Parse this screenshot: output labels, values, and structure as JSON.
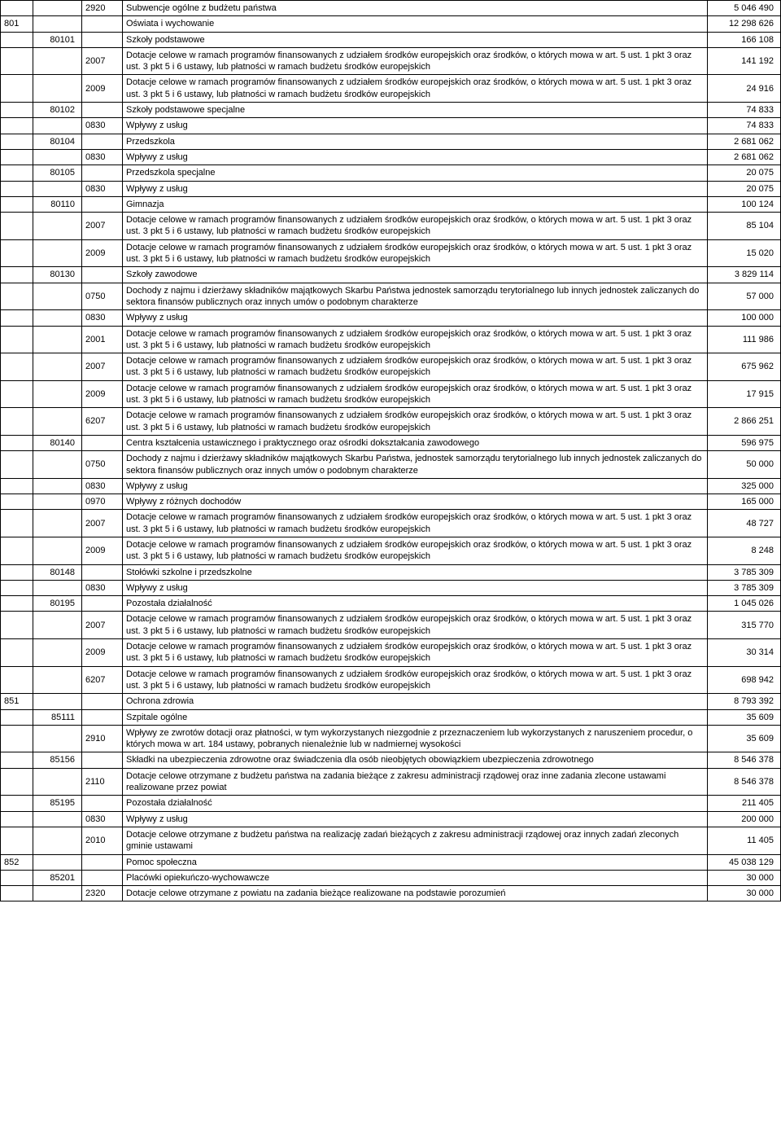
{
  "dotacje_text": "Dotacje celowe w ramach programów finansowanych z udziałem środków europejskich oraz środków, o których mowa w art. 5 ust. 1 pkt 3 oraz ust. 3 pkt 5 i 6 ustawy, lub płatności w ramach budżetu środków europejskich",
  "rows": [
    {
      "c1": "",
      "c2": "",
      "c3": "2920",
      "c4": "Subwencje ogólne z budżetu państwa",
      "c5": "5 046 490"
    },
    {
      "c1": "801",
      "c2": "",
      "c3": "",
      "c4": "Oświata i wychowanie",
      "c5": "12 298 626"
    },
    {
      "c1": "",
      "c2": "80101",
      "c3": "",
      "c4": "Szkoły podstawowe",
      "c5": "166 108"
    },
    {
      "c1": "",
      "c2": "",
      "c3": "2007",
      "c4": "@dotacje",
      "c5": "141 192"
    },
    {
      "c1": "",
      "c2": "",
      "c3": "2009",
      "c4": "@dotacje",
      "c5": "24 916"
    },
    {
      "c1": "",
      "c2": "80102",
      "c3": "",
      "c4": "Szkoły podstawowe specjalne",
      "c5": "74 833"
    },
    {
      "c1": "",
      "c2": "",
      "c3": "0830",
      "c4": "Wpływy z usług",
      "c5": "74 833"
    },
    {
      "c1": "",
      "c2": "80104",
      "c3": "",
      "c4": "Przedszkola",
      "c5": "2 681 062"
    },
    {
      "c1": "",
      "c2": "",
      "c3": "0830",
      "c4": "Wpływy z usług",
      "c5": "2 681 062"
    },
    {
      "c1": "",
      "c2": "80105",
      "c3": "",
      "c4": "Przedszkola specjalne",
      "c5": "20 075"
    },
    {
      "c1": "",
      "c2": "",
      "c3": "0830",
      "c4": "Wpływy z usług",
      "c5": "20 075"
    },
    {
      "c1": "",
      "c2": "80110",
      "c3": "",
      "c4": "Gimnazja",
      "c5": "100 124"
    },
    {
      "c1": "",
      "c2": "",
      "c3": "2007",
      "c4": "@dotacje",
      "c5": "85 104"
    },
    {
      "c1": "",
      "c2": "",
      "c3": "2009",
      "c4": "@dotacje",
      "c5": "15 020"
    },
    {
      "c1": "",
      "c2": "80130",
      "c3": "",
      "c4": "Szkoły zawodowe",
      "c5": "3 829 114"
    },
    {
      "c1": "",
      "c2": "",
      "c3": "0750",
      "c4": "Dochody z najmu i dzierżawy składników majątkowych Skarbu Państwa jednostek samorządu terytorialnego lub innych jednostek zaliczanych do sektora finansów publicznych oraz innych umów o podobnym charakterze",
      "c5": "57 000"
    },
    {
      "c1": "",
      "c2": "",
      "c3": "0830",
      "c4": "Wpływy z usług",
      "c5": "100 000"
    },
    {
      "c1": "",
      "c2": "",
      "c3": "2001",
      "c4": "@dotacje",
      "c5": "111 986"
    },
    {
      "c1": "",
      "c2": "",
      "c3": "2007",
      "c4": "@dotacje",
      "c5": "675 962"
    },
    {
      "c1": "",
      "c2": "",
      "c3": "2009",
      "c4": "@dotacje",
      "c5": "17 915"
    },
    {
      "c1": "",
      "c2": "",
      "c3": "6207",
      "c4": "@dotacje",
      "c5": "2 866 251"
    },
    {
      "c1": "",
      "c2": "80140",
      "c3": "",
      "c4": "Centra kształcenia ustawicznego i praktycznego oraz ośrodki dokształcania zawodowego",
      "c5": "596 975"
    },
    {
      "c1": "",
      "c2": "",
      "c3": "0750",
      "c4": "Dochody z najmu i dzierżawy składników majątkowych Skarbu Państwa, jednostek samorządu terytorialnego lub innych jednostek zaliczanych do sektora finansów publicznych oraz innych umów o podobnym charakterze",
      "c5": "50 000"
    },
    {
      "c1": "",
      "c2": "",
      "c3": "0830",
      "c4": "Wpływy z usług",
      "c5": "325 000"
    },
    {
      "c1": "",
      "c2": "",
      "c3": "0970",
      "c4": "Wpływy z różnych dochodów",
      "c5": "165 000"
    },
    {
      "c1": "",
      "c2": "",
      "c3": "2007",
      "c4": "@dotacje",
      "c5": "48 727"
    },
    {
      "c1": "",
      "c2": "",
      "c3": "2009",
      "c4": "@dotacje",
      "c5": "8 248"
    },
    {
      "c1": "",
      "c2": "80148",
      "c3": "",
      "c4": "Stołówki szkolne i przedszkolne",
      "c5": "3 785 309"
    },
    {
      "c1": "",
      "c2": "",
      "c3": "0830",
      "c4": "Wpływy z usług",
      "c5": "3 785 309"
    },
    {
      "c1": "",
      "c2": "80195",
      "c3": "",
      "c4": "Pozostała działalność",
      "c5": "1 045 026"
    },
    {
      "c1": "",
      "c2": "",
      "c3": "2007",
      "c4": "@dotacje",
      "c5": "315 770"
    },
    {
      "c1": "",
      "c2": "",
      "c3": "2009",
      "c4": "@dotacje",
      "c5": "30 314"
    },
    {
      "c1": "",
      "c2": "",
      "c3": "6207",
      "c4": "@dotacje",
      "c5": "698 942"
    },
    {
      "c1": "851",
      "c2": "",
      "c3": "",
      "c4": "Ochrona zdrowia",
      "c5": "8 793 392"
    },
    {
      "c1": "",
      "c2": "85111",
      "c3": "",
      "c4": "Szpitale ogólne",
      "c5": "35 609"
    },
    {
      "c1": "",
      "c2": "",
      "c3": "2910",
      "c4": "Wpływy ze zwrotów dotacji oraz płatności, w tym wykorzystanych niezgodnie z przeznaczeniem lub wykorzystanych z naruszeniem procedur, o których mowa w art. 184 ustawy, pobranych nienależnie lub w nadmiernej wysokości",
      "c5": "35 609"
    },
    {
      "c1": "",
      "c2": "85156",
      "c3": "",
      "c4": "Składki na ubezpieczenia zdrowotne oraz świadczenia dla osób nieobjętych obowiązkiem ubezpieczenia zdrowotnego",
      "c5": "8 546 378"
    },
    {
      "c1": "",
      "c2": "",
      "c3": "2110",
      "c4": "Dotacje celowe otrzymane z budżetu państwa na zadania bieżące z zakresu administracji rządowej oraz inne zadania zlecone ustawami realizowane przez powiat",
      "c5": "8 546 378"
    },
    {
      "c1": "",
      "c2": "85195",
      "c3": "",
      "c4": "Pozostała działalność",
      "c5": "211 405"
    },
    {
      "c1": "",
      "c2": "",
      "c3": "0830",
      "c4": "Wpływy z usług",
      "c5": "200 000"
    },
    {
      "c1": "",
      "c2": "",
      "c3": "2010",
      "c4": "Dotacje celowe otrzymane z budżetu państwa na realizację zadań bieżących z zakresu administracji rządowej oraz innych zadań zleconych gminie ustawami",
      "c5": "11 405"
    },
    {
      "c1": "852",
      "c2": "",
      "c3": "",
      "c4": "Pomoc społeczna",
      "c5": "45 038 129"
    },
    {
      "c1": "",
      "c2": "85201",
      "c3": "",
      "c4": "Placówki opiekuńczo-wychowawcze",
      "c5": "30 000"
    },
    {
      "c1": "",
      "c2": "",
      "c3": "2320",
      "c4": "Dotacje celowe otrzymane z powiatu na zadania bieżące realizowane na podstawie porozumień",
      "c5": "30 000"
    }
  ]
}
